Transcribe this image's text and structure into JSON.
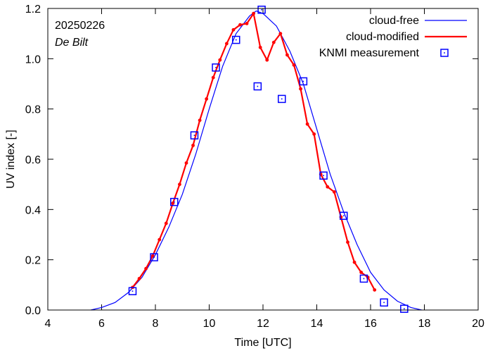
{
  "chart_data": {
    "type": "line",
    "date_label": "20250226",
    "location_label": "De Bilt",
    "xlabel": "Time  [UTC]",
    "ylabel": "UV index  [-]",
    "xlim": [
      4,
      20
    ],
    "ylim": [
      0,
      1.2
    ],
    "x_ticks": [
      4,
      6,
      8,
      10,
      12,
      14,
      16,
      18,
      20
    ],
    "y_ticks": [
      0.0,
      0.2,
      0.4,
      0.6,
      0.8,
      1.0,
      1.2
    ],
    "y_tick_labels": [
      "0.0",
      "0.2",
      "0.4",
      "0.6",
      "0.8",
      "1.0",
      "1.2"
    ],
    "legend_position": "top-right",
    "series": [
      {
        "name": "cloud-free",
        "style": "line",
        "color": "#0000ff",
        "x": [
          5.6,
          6.0,
          6.5,
          7.0,
          7.5,
          8.0,
          8.5,
          9.0,
          9.5,
          10.0,
          10.5,
          11.0,
          11.5,
          11.75,
          12.0,
          12.5,
          13.0,
          13.5,
          14.0,
          14.5,
          15.0,
          15.5,
          16.0,
          16.5,
          17.0,
          17.5,
          17.9
        ],
        "values": [
          0.0,
          0.01,
          0.03,
          0.07,
          0.13,
          0.22,
          0.33,
          0.46,
          0.62,
          0.8,
          0.97,
          1.1,
          1.17,
          1.19,
          1.18,
          1.13,
          1.03,
          0.9,
          0.72,
          0.54,
          0.39,
          0.26,
          0.15,
          0.08,
          0.035,
          0.01,
          0.0
        ]
      },
      {
        "name": "cloud-modified",
        "style": "line-points",
        "color": "#ff0000",
        "x": [
          7.15,
          7.4,
          7.65,
          7.9,
          8.15,
          8.4,
          8.65,
          8.9,
          9.15,
          9.4,
          9.65,
          9.9,
          10.15,
          10.4,
          10.65,
          10.9,
          11.15,
          11.4,
          11.65,
          11.9,
          12.15,
          12.4,
          12.65,
          12.9,
          13.15,
          13.4,
          13.65,
          13.9,
          14.15,
          14.4,
          14.65,
          14.9,
          15.15,
          15.4,
          15.65,
          15.9,
          16.15
        ],
        "values": [
          0.09,
          0.125,
          0.165,
          0.215,
          0.28,
          0.345,
          0.425,
          0.5,
          0.585,
          0.655,
          0.755,
          0.84,
          0.925,
          0.995,
          1.06,
          1.115,
          1.135,
          1.14,
          1.18,
          1.045,
          0.995,
          1.065,
          1.1,
          1.015,
          0.975,
          0.88,
          0.74,
          0.7,
          0.54,
          0.49,
          0.47,
          0.37,
          0.27,
          0.19,
          0.15,
          0.13,
          0.08
        ]
      },
      {
        "name": "KNMI measurement",
        "style": "points",
        "color": "#0000ff",
        "x": [
          7.15,
          7.95,
          8.7,
          9.45,
          10.25,
          11.0,
          11.8,
          11.95,
          12.7,
          13.5,
          14.25,
          15.0,
          15.75,
          16.5,
          17.25
        ],
        "values": [
          0.075,
          0.21,
          0.43,
          0.695,
          0.965,
          1.075,
          0.89,
          1.195,
          0.84,
          0.91,
          0.535,
          0.375,
          0.125,
          0.03,
          0.005
        ]
      }
    ]
  }
}
